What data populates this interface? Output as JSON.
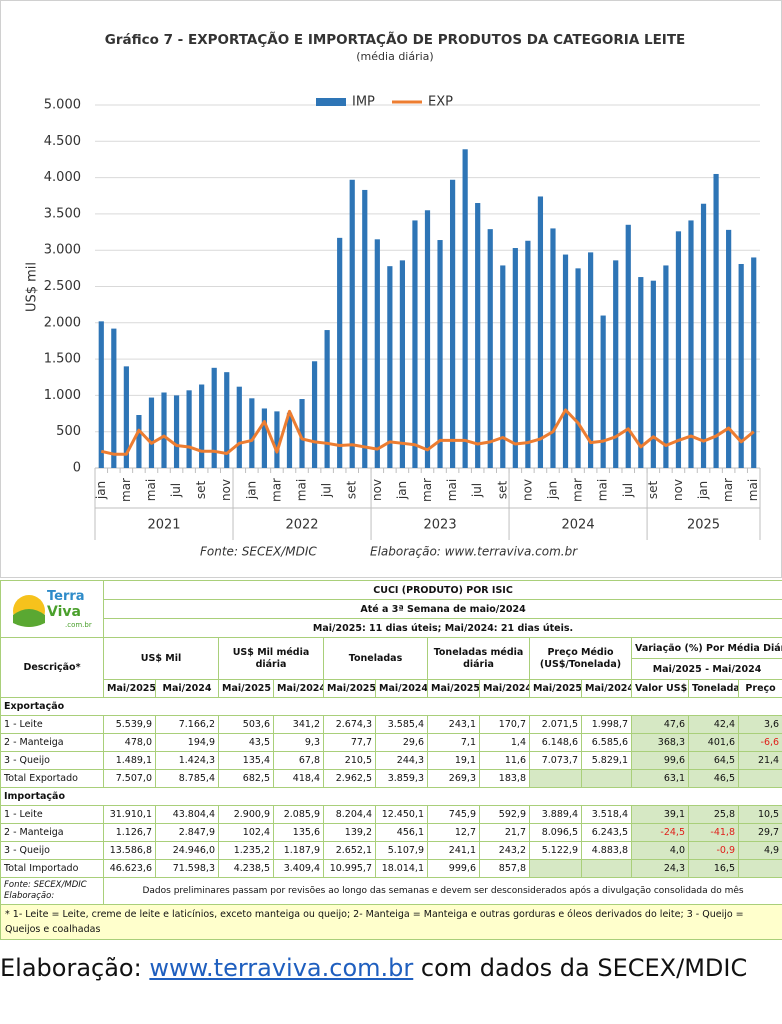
{
  "chart_data": {
    "type": "bar_line",
    "title": "Gráfico 7 - EXPORTAÇÃO E IMPORTAÇÃO DE PRODUTOS DA CATEGORIA LEITE",
    "subtitle": "(média diária)",
    "y_label": "US$ mil",
    "source": "Fonte: SECEX/MDIC",
    "credit": "Elaboração: www.terraviva.com.br",
    "categories": [
      "jan",
      null,
      "mar",
      null,
      "mai",
      null,
      "jul",
      null,
      "set",
      null,
      "nov",
      null,
      "jan",
      null,
      "mar",
      null,
      "mai",
      null,
      "jul",
      null,
      "set",
      null,
      "nov",
      null,
      "jan",
      null,
      "mar",
      null,
      "mai",
      null,
      "jul",
      null,
      "set",
      null,
      "nov",
      null,
      "jan",
      null,
      "mar",
      null,
      "mai",
      null,
      "jul",
      null,
      "set",
      null,
      "nov",
      null,
      "jan",
      null,
      "mar",
      null,
      "mai"
    ],
    "years": [
      "2021",
      "2022",
      "2023",
      "2024",
      "2025"
    ],
    "series": [
      {
        "name": "IMP",
        "kind": "bar",
        "color": "#2e75b6",
        "values": [
          2020,
          1920,
          1400,
          730,
          970,
          1040,
          1000,
          1070,
          1150,
          1380,
          1320,
          1120,
          960,
          820,
          780,
          760,
          950,
          1470,
          1900,
          3170,
          3970,
          3830,
          3150,
          2780,
          2860,
          3410,
          3550,
          3140,
          3970,
          4390,
          3650,
          3290,
          2790,
          3030,
          3130,
          3740,
          3300,
          2940,
          2750,
          2970,
          2100,
          2860,
          3350,
          2630,
          2580,
          2790,
          3260,
          3410,
          3640,
          4050,
          3280,
          2810,
          2900
        ]
      },
      {
        "name": "EXP",
        "kind": "line",
        "color": "#ed7d31",
        "values": [
          230,
          190,
          190,
          520,
          340,
          440,
          310,
          290,
          230,
          230,
          200,
          340,
          380,
          640,
          220,
          780,
          400,
          360,
          340,
          310,
          320,
          290,
          260,
          360,
          340,
          320,
          250,
          380,
          380,
          380,
          330,
          360,
          420,
          330,
          350,
          400,
          500,
          800,
          620,
          350,
          370,
          430,
          540,
          290,
          430,
          310,
          380,
          440,
          370,
          440,
          550,
          360,
          500
        ]
      }
    ],
    "ylim": [
      0,
      5000
    ],
    "yticks": [
      0,
      {
        "value": 500,
        "label": "500"
      },
      {
        "value": 1000,
        "label": "1.000"
      },
      {
        "value": 1500,
        "label": "1.500"
      },
      {
        "value": 2000,
        "label": "2.000"
      },
      {
        "value": 2500,
        "label": "2.500"
      },
      {
        "value": 3000,
        "label": "3.000"
      },
      {
        "value": 3500,
        "label": "3.500"
      },
      {
        "value": 4000,
        "label": "4.000"
      },
      {
        "value": 4500,
        "label": "4.500"
      },
      {
        "value": 5000,
        "label": "5.000"
      }
    ],
    "grid": true,
    "legend": "top"
  },
  "table": {
    "logo": [
      "Terra",
      "Viva",
      ".com.br"
    ],
    "title": "CUCI (PRODUTO) POR ISIC",
    "subtitle": "Até a 3ª Semana de maio/2024",
    "days": "Mai/2025: 11 dias úteis;  Mai/2024: 21 dias úteis.",
    "description": "Descrição*",
    "groups": [
      "US$ Mil",
      "US$ Mil  média diária",
      "Toneladas",
      "Toneladas média diária",
      "Preço Médio (US$/Tonelada)"
    ],
    "variation": "Variação (%) Por Média Diária",
    "variation_period": "Mai/2025 - Mai/2024",
    "columns": [
      "Mai/2025",
      "Mai/2024",
      "Mai/2025",
      "Mai/2024",
      "Mai/2025",
      "Mai/2024",
      "Mai/2025",
      "Mai/2024",
      "Mai/2025",
      "Mai/2024",
      "Valor US$",
      "Toneladas",
      "Preço"
    ],
    "sections": [
      {
        "title": "Exportação",
        "rows": [
          [
            "1 - Leite",
            "5.539,9",
            "7.166,2",
            "503,6",
            "341,2",
            "2.674,3",
            "3.585,4",
            "243,1",
            "170,7",
            "2.071,5",
            "1.998,7",
            "47,6",
            "42,4",
            "3,6"
          ],
          [
            "2 - Manteiga",
            "478,0",
            "194,9",
            "43,5",
            "9,3",
            "77,7",
            "29,6",
            "7,1",
            "1,4",
            "6.148,6",
            "6.585,6",
            "368,3",
            "401,6",
            "-6,6"
          ],
          [
            "3 - Queijo",
            "1.489,1",
            "1.424,3",
            "135,4",
            "67,8",
            "210,5",
            "244,3",
            "19,1",
            "11,6",
            "7.073,7",
            "5.829,1",
            "99,6",
            "64,5",
            "21,4"
          ],
          [
            "Total Exportado",
            "7.507,0",
            "8.785,4",
            "682,5",
            "418,4",
            "2.962,5",
            "3.859,3",
            "269,3",
            "183,8",
            null,
            null,
            "63,1",
            "46,5",
            null
          ]
        ]
      },
      {
        "title": "Importação",
        "rows": [
          [
            "1 - Leite",
            "31.910,1",
            "43.804,4",
            "2.900,9",
            "2.085,9",
            "8.204,4",
            "12.450,1",
            "745,9",
            "592,9",
            "3.889,4",
            "3.518,4",
            "39,1",
            "25,8",
            "10,5"
          ],
          [
            "2 - Manteiga",
            "1.126,7",
            "2.847,9",
            "102,4",
            "135,6",
            "139,2",
            "456,1",
            "12,7",
            "21,7",
            "8.096,5",
            "6.243,5",
            "-24,5",
            "-41,8",
            "29,7"
          ],
          [
            "3 - Queijo",
            "13.586,8",
            "24.946,0",
            "1.235,2",
            "1.187,9",
            "2.652,1",
            "5.107,9",
            "241,1",
            "243,2",
            "5.122,9",
            "4.883,8",
            "4,0",
            "-0,9",
            "4,9"
          ],
          [
            "Total Importado",
            "46.623,6",
            "71.598,3",
            "4.238,5",
            "3.409,4",
            "10.995,7",
            "18.014,1",
            "999,6",
            "857,8",
            null,
            null,
            "24,3",
            "16,5",
            null
          ]
        ]
      }
    ],
    "footer_source": "Fonte: SECEX/MDIC",
    "footer_credit": "Elaboração:",
    "footer_note": "Dados preliminares passam por revisões ao longo das semanas e devem ser desconsiderados após a divulgação consolidada do mês",
    "footnote": "* 1- Leite = Leite, creme de leite e laticínios, exceto manteiga ou queijo;  2- Manteiga = Manteiga e outras gorduras e óleos derivados do leite;  3 - Queijo = Queijos e coalhadas"
  },
  "caption": {
    "prefix": "Elaboração:",
    "link": "www.terraviva.com.br",
    "suffix": "com dados da SECEX/MDIC"
  }
}
